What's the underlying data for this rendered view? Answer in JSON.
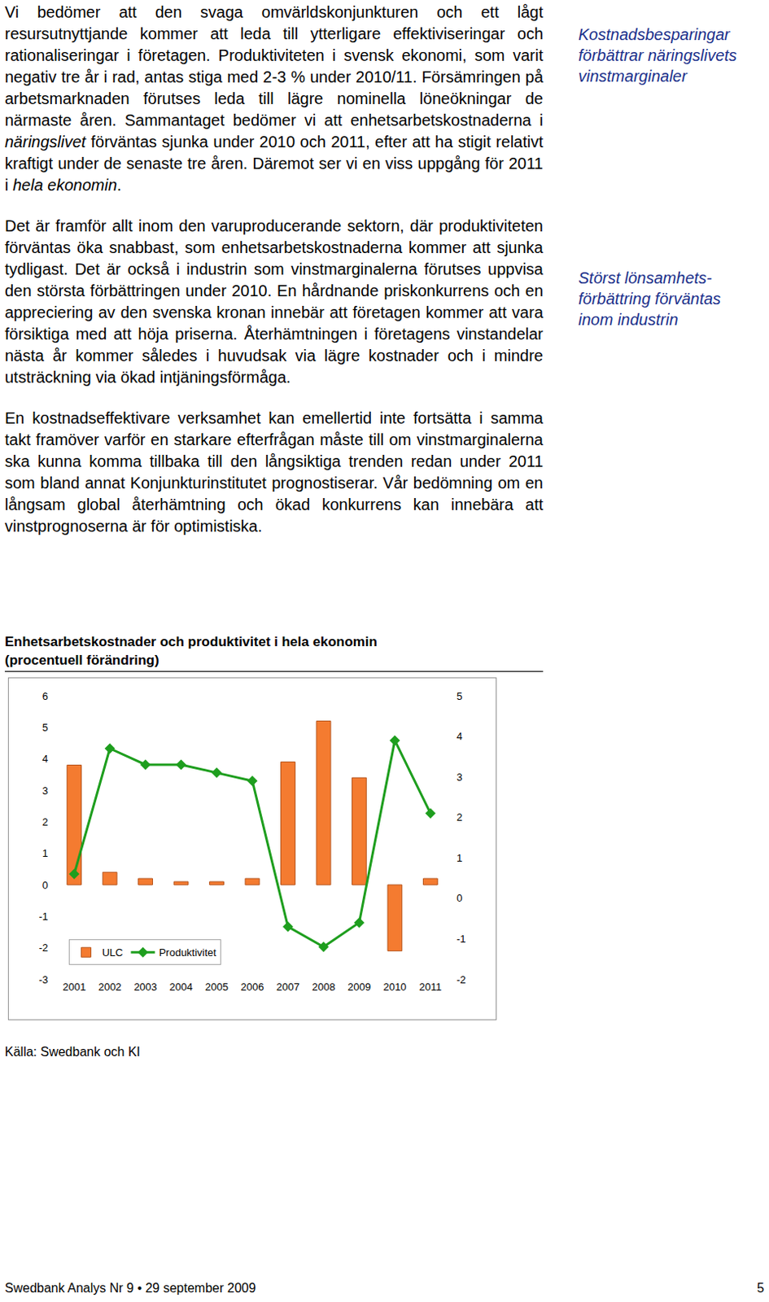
{
  "document": {
    "paragraphs": [
      [
        {
          "text": "Vi bedömer att den svaga omvärldskonjunkturen och ett lågt resursutnyttjande kommer att leda till ytterligare effektiviseringar och rationaliseringar i företagen. Produktiviteten i svensk ekonomi, som varit negativ tre år i rad, antas stiga med 2-3 % under 2010/11. Försämringen på arbetsmarknaden förutses leda till lägre nominella löneökningar de närmaste åren. Sammantaget bedömer vi att enhetsarbetskostnaderna i "
        },
        {
          "text": "näringslivet",
          "italic": true
        },
        {
          "text": " förväntas sjunka under 2010 och 2011, efter att ha stigit relativt kraftigt under de senaste tre åren. Däremot ser vi en viss uppgång för 2011 i "
        },
        {
          "text": "hela ekonomin",
          "italic": true
        },
        {
          "text": "."
        }
      ],
      [
        {
          "text": "Det är framför allt inom den varuproducerande sektorn, där produktiviteten förväntas öka snabbast, som enhetsarbetskostnaderna kommer att sjunka tydligast. Det är också i industrin som vinstmarginalerna förutses uppvisa den största förbättringen under 2010. En hårdnande priskonkurrens och en appreciering av den svenska kronan innebär att företagen kommer att vara försiktiga med att höja priserna. Återhämtningen i företagens vinstandelar nästa år kommer således i huvudsak via lägre kostnader och i mindre utsträckning via ökad intjäningsförmåga."
        }
      ],
      [
        {
          "text": "En kostnadseffektivare verksamhet kan emellertid inte fortsätta i samma takt framöver varför en starkare efterfrågan måste till om vinstmarginalerna ska kunna komma tillbaka till den långsiktiga trenden redan under 2011 som bland annat Konjunkturinstitutet prognostiserar. Vår bedömning om en långsam global återhämtning och ökad konkurrens kan innebära att vinstprognoserna är för optimistiska."
        }
      ]
    ],
    "sidenotes": [
      [
        "Kostnadsbesparingar",
        "förbättrar näringslivets",
        "vinstmarginaler"
      ],
      [
        "Störst lönsamhets-",
        "förbättring förväntas",
        "inom industrin"
      ]
    ],
    "source": "Källa: Swedbank och KI",
    "footer": {
      "left": "Swedbank Analys Nr 9 • 29 september 2009",
      "page": 5
    }
  },
  "chart_data": {
    "type": "bar",
    "title": "Enhetsarbetskostnader och produktivitet i hela ekonomin\n(procentuell förändring)",
    "categories": [
      "2001",
      "2002",
      "2003",
      "2004",
      "2005",
      "2006",
      "2007",
      "2008",
      "2009",
      "2010",
      "2011"
    ],
    "series": [
      {
        "name": "ULC",
        "type": "bar",
        "color": "#f47b30",
        "values": [
          3.8,
          0.4,
          0.2,
          0.1,
          0.1,
          0.2,
          3.9,
          5.2,
          3.4,
          -2.1,
          0.2
        ]
      },
      {
        "name": "Produktivitet",
        "type": "line",
        "color": "#1e9e1e",
        "marker": "diamond",
        "axis": "y2",
        "values": [
          0.6,
          3.7,
          3.3,
          3.3,
          3.1,
          2.9,
          -0.7,
          -1.2,
          -0.6,
          3.9,
          2.1
        ]
      }
    ],
    "ylim": [
      -3,
      6
    ],
    "yticks": [
      -3,
      -2,
      -1,
      0,
      1,
      2,
      3,
      4,
      5,
      6
    ],
    "y2lim": [
      -2,
      5
    ],
    "y2ticks": [
      -2,
      -1,
      0,
      1,
      2,
      3,
      4,
      5
    ],
    "grid": false,
    "legend": "lower left"
  }
}
